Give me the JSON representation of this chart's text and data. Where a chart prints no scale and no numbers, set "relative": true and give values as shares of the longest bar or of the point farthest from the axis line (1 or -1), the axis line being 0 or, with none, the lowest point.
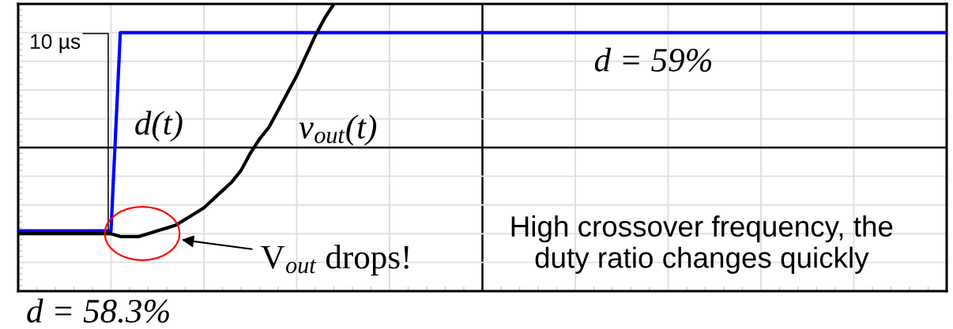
{
  "chart_data": {
    "type": "line",
    "relative": true,
    "grid": true,
    "tick_labels": false,
    "categories": [
      null,
      null,
      null,
      null,
      null,
      null,
      null,
      null,
      null,
      null,
      null,
      null,
      null,
      null,
      null,
      null,
      null,
      null,
      null,
      null,
      null,
      null,
      null,
      null,
      null,
      null,
      null,
      null,
      null,
      null,
      null,
      null,
      null,
      null,
      null,
      null,
      null,
      null,
      null,
      null,
      null,
      null,
      null,
      null,
      null,
      null,
      null,
      null,
      null,
      null,
      null,
      null,
      null,
      null,
      null,
      null,
      null,
      null,
      null,
      null,
      null,
      null,
      null,
      null,
      null,
      null,
      null,
      null,
      null,
      null,
      null,
      null,
      null,
      null,
      null,
      null,
      null,
      null,
      null,
      null,
      null,
      null,
      null,
      null,
      null,
      null,
      null,
      null,
      null,
      null,
      null,
      null,
      null,
      null,
      null,
      null,
      null,
      null,
      null,
      null,
      null
    ],
    "series": [
      {
        "name": "d(t)",
        "color": "#0000ff",
        "values": [
          0.21,
          0.21,
          0.21,
          0.21,
          0.21,
          0.21,
          0.21,
          0.21,
          0.21,
          0.21,
          0.21,
          0.9,
          0.9,
          0.9,
          0.9,
          0.9,
          0.9,
          0.9,
          0.9,
          0.9,
          0.9,
          0.9,
          0.9,
          0.9,
          0.9,
          0.9,
          0.9,
          0.9,
          0.9,
          0.9,
          0.9,
          0.9,
          0.9,
          0.9,
          0.9,
          0.9,
          0.9,
          0.9,
          0.9,
          0.9,
          0.9,
          0.9,
          0.9,
          0.9,
          0.9,
          0.9,
          0.9,
          0.9,
          0.9,
          0.9,
          0.9,
          0.9,
          0.9,
          0.9,
          0.9,
          0.9,
          0.9,
          0.9,
          0.9,
          0.9,
          0.9,
          0.9,
          0.9,
          0.9,
          0.9,
          0.9,
          0.9,
          0.9,
          0.9,
          0.9,
          0.9,
          0.9,
          0.9,
          0.9,
          0.9,
          0.9,
          0.9,
          0.9,
          0.9,
          0.9,
          0.9,
          0.9,
          0.9,
          0.9,
          0.9,
          0.9,
          0.9,
          0.9,
          0.9,
          0.9,
          0.9,
          0.9,
          0.9,
          0.9,
          0.9,
          0.9,
          0.9,
          0.9,
          0.9,
          0.9,
          0.9
        ]
      },
      {
        "name": "v$_{out}$(t)",
        "color": "#000000",
        "values": [
          0.2,
          0.2,
          0.2,
          0.2,
          0.2,
          0.2,
          0.2,
          0.2,
          0.2,
          0.2,
          0.2,
          0.19,
          0.19,
          0.19,
          0.2,
          0.21,
          0.22,
          0.23,
          0.25,
          0.27,
          0.29,
          0.32,
          0.35,
          0.38,
          0.42,
          0.48,
          0.53,
          0.57,
          0.63,
          0.69,
          0.75,
          0.82,
          0.89,
          0.95,
          1,
          null,
          null,
          null,
          null,
          null,
          null,
          null,
          null,
          null,
          null,
          null,
          null,
          null,
          null,
          null,
          null,
          null,
          null,
          null,
          null,
          null,
          null,
          null,
          null,
          null,
          null,
          null,
          null,
          null,
          null,
          null,
          null,
          null,
          null,
          null,
          null,
          null,
          null,
          null,
          null,
          null,
          null,
          null,
          null,
          null,
          null,
          null,
          null,
          null,
          null,
          null,
          null,
          null,
          null,
          null,
          null,
          null,
          null,
          null,
          null,
          null,
          null,
          null,
          null,
          null,
          null
        ]
      }
    ],
    "ref_lines": [
      {
        "axis": "y",
        "value": 0.5,
        "color": "#000000"
      }
    ],
    "annotations": [
      "10 µs",
      "d = 59%",
      "V$_{out}$ drops!",
      "High crossover frequency, the\nduty ratio changes quickly",
      "d = 58.3%"
    ]
  }
}
